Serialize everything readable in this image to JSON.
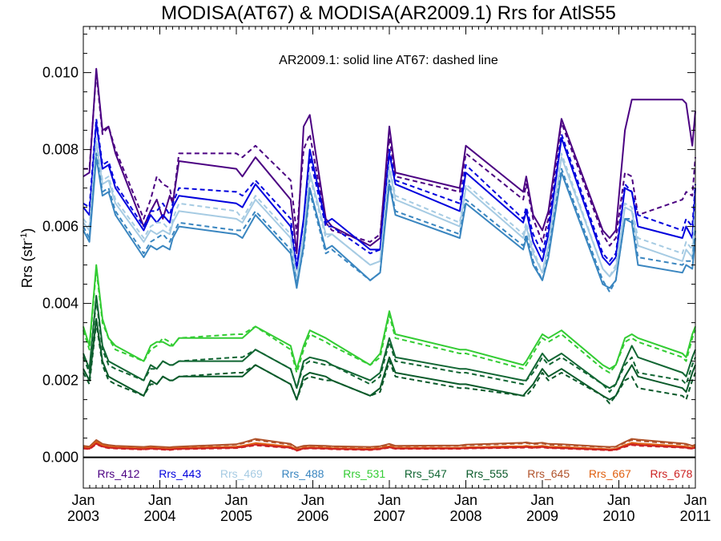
{
  "chart_data": {
    "type": "line",
    "title": "MODISA(AT67) & MODISA(AR2009.1)  Rrs for AtlS55",
    "subtitle": "AR2009.1: solid line   AT67: dashed line",
    "ylabel": "Rrs (str",
    "ylabel_sup": "-1",
    "ylabel_end": ")",
    "xlim": [
      2003.0,
      2011.0
    ],
    "ylim": [
      -0.0008,
      0.0112
    ],
    "y_ticks": [
      {
        "value": 0.0,
        "label": "0.000"
      },
      {
        "value": 0.002,
        "label": "0.002"
      },
      {
        "value": 0.004,
        "label": "0.004"
      },
      {
        "value": 0.006,
        "label": "0.006"
      },
      {
        "value": 0.008,
        "label": "0.008"
      },
      {
        "value": 0.01,
        "label": "0.010"
      }
    ],
    "x_ticks": [
      {
        "value": 2003,
        "month": "Jan",
        "year": "2003"
      },
      {
        "value": 2004,
        "month": "Jan",
        "year": "2004"
      },
      {
        "value": 2005,
        "month": "Jan",
        "year": "2005"
      },
      {
        "value": 2006,
        "month": "Jan",
        "year": "2006"
      },
      {
        "value": 2007,
        "month": "Jan",
        "year": "2007"
      },
      {
        "value": 2008,
        "month": "Jan",
        "year": "2008"
      },
      {
        "value": 2009,
        "month": "Jan",
        "year": "2009"
      },
      {
        "value": 2010,
        "month": "Jan",
        "year": "2010"
      },
      {
        "value": 2011,
        "month": "Jan",
        "year": "2011"
      }
    ],
    "x": [
      2003.0,
      2003.08,
      2003.17,
      2003.25,
      2003.33,
      2003.42,
      2003.79,
      2003.88,
      2003.96,
      2004.04,
      2004.13,
      2004.17,
      2004.25,
      2005.0,
      2005.08,
      2005.25,
      2005.71,
      2005.79,
      2005.88,
      2005.96,
      2006.17,
      2006.25,
      2006.75,
      2006.88,
      2007.0,
      2007.08,
      2007.92,
      2008.0,
      2008.75,
      2008.79,
      2008.88,
      2009.0,
      2009.08,
      2009.25,
      2009.79,
      2009.88,
      2009.96,
      2010.08,
      2010.17,
      2010.25,
      2010.83,
      2010.88,
      2010.96,
      2011.0
    ],
    "zero_line": 0.0,
    "series": [
      {
        "name": "Rrs_412",
        "color": "#4b0082",
        "solid": [
          0.0073,
          0.0074,
          0.0101,
          0.0085,
          0.0086,
          0.0079,
          0.006,
          0.0064,
          0.0067,
          0.0062,
          0.0068,
          0.0066,
          0.0077,
          0.0075,
          0.0073,
          0.0078,
          0.0067,
          0.0053,
          0.0086,
          0.0089,
          0.0062,
          0.006,
          0.0055,
          0.0057,
          0.0086,
          0.0074,
          0.007,
          0.0081,
          0.0069,
          0.0073,
          0.0063,
          0.0059,
          0.0064,
          0.0088,
          0.0059,
          0.0057,
          0.0059,
          0.0085,
          0.0093,
          0.0093,
          0.0093,
          0.0092,
          0.0081,
          0.009
        ],
        "dashed": [
          0.0075,
          0.0075,
          0.01,
          0.0084,
          0.0086,
          0.008,
          0.0062,
          0.0067,
          0.0073,
          0.0071,
          0.007,
          0.0066,
          0.0079,
          0.0079,
          0.0078,
          0.0081,
          0.0072,
          0.0058,
          0.008,
          0.0084,
          0.0061,
          0.0059,
          0.0056,
          0.0058,
          0.0083,
          0.0073,
          0.0069,
          0.0079,
          0.0067,
          0.0071,
          0.0062,
          0.0056,
          0.0062,
          0.0087,
          0.0058,
          0.0055,
          0.0057,
          0.0074,
          0.0073,
          0.0063,
          0.0067,
          0.0069,
          0.0068,
          0.0078
        ]
      },
      {
        "name": "Rrs_443",
        "color": "#0000dd",
        "solid": [
          0.0065,
          0.0063,
          0.0087,
          0.0075,
          0.0076,
          0.007,
          0.0059,
          0.0063,
          0.0061,
          0.0063,
          0.0061,
          0.0065,
          0.0068,
          0.0066,
          0.0065,
          0.0071,
          0.006,
          0.0049,
          0.0062,
          0.008,
          0.0061,
          0.0062,
          0.0054,
          0.0054,
          0.0079,
          0.0071,
          0.0064,
          0.0074,
          0.0061,
          0.0064,
          0.0056,
          0.0051,
          0.0058,
          0.0083,
          0.0052,
          0.005,
          0.0052,
          0.007,
          0.0069,
          0.006,
          0.0057,
          0.006,
          0.0057,
          0.007
        ],
        "dashed": [
          0.0066,
          0.0065,
          0.0088,
          0.0076,
          0.0077,
          0.0071,
          0.006,
          0.0064,
          0.0064,
          0.0066,
          0.0063,
          0.0066,
          0.007,
          0.0069,
          0.0068,
          0.0072,
          0.0062,
          0.005,
          0.0061,
          0.0078,
          0.006,
          0.006,
          0.0053,
          0.0054,
          0.008,
          0.0072,
          0.0066,
          0.0076,
          0.0062,
          0.0065,
          0.0058,
          0.0053,
          0.006,
          0.0084,
          0.0053,
          0.0051,
          0.0053,
          0.0071,
          0.0069,
          0.0063,
          0.0059,
          0.0062,
          0.006,
          0.0071
        ]
      },
      {
        "name": "Rrs_469",
        "color": "#a6cbe3",
        "solid": [
          0.0061,
          0.0059,
          0.0082,
          0.0071,
          0.0072,
          0.0066,
          0.0056,
          0.0059,
          0.0058,
          0.0059,
          0.0058,
          0.0061,
          0.0064,
          0.0062,
          0.0061,
          0.0067,
          0.0057,
          0.0046,
          0.0058,
          0.0074,
          0.0058,
          0.0058,
          0.005,
          0.0051,
          0.0075,
          0.0067,
          0.006,
          0.007,
          0.0057,
          0.006,
          0.0053,
          0.0048,
          0.0055,
          0.0078,
          0.0049,
          0.0047,
          0.0049,
          0.0065,
          0.0064,
          0.0055,
          0.0051,
          0.0054,
          0.0052,
          0.0064
        ],
        "dashed": [
          0.0062,
          0.006,
          0.0083,
          0.0072,
          0.0073,
          0.0067,
          0.0057,
          0.006,
          0.0061,
          0.0061,
          0.0059,
          0.0062,
          0.0066,
          0.0064,
          0.0062,
          0.0068,
          0.0058,
          0.0047,
          0.0058,
          0.0073,
          0.0057,
          0.0058,
          0.005,
          0.0051,
          0.0076,
          0.0068,
          0.0061,
          0.0071,
          0.0058,
          0.0061,
          0.0054,
          0.0048,
          0.0056,
          0.0079,
          0.0049,
          0.0047,
          0.005,
          0.0066,
          0.0065,
          0.0057,
          0.0053,
          0.0056,
          0.0054,
          0.0066
        ]
      },
      {
        "name": "Rrs_488",
        "color": "#3a86c0",
        "solid": [
          0.0059,
          0.0056,
          0.0078,
          0.0068,
          0.0069,
          0.0063,
          0.0052,
          0.0055,
          0.0054,
          0.0055,
          0.0054,
          0.0057,
          0.006,
          0.0058,
          0.0057,
          0.0063,
          0.0053,
          0.0044,
          0.0055,
          0.007,
          0.0054,
          0.0055,
          0.0046,
          0.0048,
          0.0071,
          0.0063,
          0.0057,
          0.0066,
          0.0054,
          0.0057,
          0.005,
          0.0046,
          0.0052,
          0.0074,
          0.0045,
          0.0044,
          0.0046,
          0.0062,
          0.0061,
          0.005,
          0.0048,
          0.005,
          0.0049,
          0.0057
        ],
        "dashed": [
          0.006,
          0.0057,
          0.0079,
          0.0069,
          0.007,
          0.0064,
          0.0053,
          0.0056,
          0.0057,
          0.0058,
          0.0056,
          0.0058,
          0.0061,
          0.0059,
          0.0059,
          0.0064,
          0.0054,
          0.0045,
          0.0054,
          0.0069,
          0.0053,
          0.0054,
          0.0046,
          0.0048,
          0.0072,
          0.0064,
          0.0058,
          0.0067,
          0.0055,
          0.0058,
          0.0051,
          0.0046,
          0.0053,
          0.0075,
          0.0046,
          0.0043,
          0.0046,
          0.0062,
          0.0062,
          0.0052,
          0.005,
          0.0051,
          0.0051,
          0.0059
        ]
      },
      {
        "name": "Rrs_531",
        "color": "#33cc33",
        "solid": [
          0.0034,
          0.0029,
          0.005,
          0.0036,
          0.0031,
          0.0029,
          0.0025,
          0.0029,
          0.003,
          0.003,
          0.0029,
          0.0029,
          0.0031,
          0.0031,
          0.0031,
          0.0034,
          0.0029,
          0.0023,
          0.0029,
          0.0033,
          0.0031,
          0.003,
          0.0024,
          0.0027,
          0.0038,
          0.0032,
          0.0028,
          0.0028,
          0.0024,
          0.0025,
          0.0028,
          0.0032,
          0.0031,
          0.0033,
          0.0024,
          0.0023,
          0.0024,
          0.0031,
          0.0032,
          0.0031,
          0.0027,
          0.0026,
          0.0032,
          0.0034
        ],
        "dashed": [
          0.0033,
          0.0028,
          0.0049,
          0.0035,
          0.0031,
          0.0028,
          0.0025,
          0.0028,
          0.0029,
          0.0031,
          0.003,
          0.0029,
          0.0031,
          0.0032,
          0.0032,
          0.0034,
          0.0028,
          0.0022,
          0.0028,
          0.0032,
          0.003,
          0.0029,
          0.0024,
          0.0026,
          0.0037,
          0.0031,
          0.0027,
          0.0027,
          0.0023,
          0.0024,
          0.0027,
          0.0031,
          0.003,
          0.0032,
          0.0023,
          0.0022,
          0.0024,
          0.003,
          0.0031,
          0.003,
          0.0026,
          0.0025,
          0.0031,
          0.0033
        ]
      },
      {
        "name": "Rrs_547",
        "color": "#116633",
        "solid": [
          0.0027,
          0.0023,
          0.0042,
          0.0029,
          0.0025,
          0.0024,
          0.002,
          0.0024,
          0.0023,
          0.0025,
          0.0024,
          0.0024,
          0.0025,
          0.0025,
          0.0025,
          0.0028,
          0.0023,
          0.0018,
          0.0025,
          0.0026,
          0.0025,
          0.0024,
          0.002,
          0.0022,
          0.0031,
          0.0026,
          0.0023,
          0.0023,
          0.002,
          0.002,
          0.0023,
          0.0027,
          0.0025,
          0.0027,
          0.0019,
          0.0018,
          0.0019,
          0.0025,
          0.0029,
          0.0026,
          0.0022,
          0.0021,
          0.0026,
          0.0028
        ],
        "dashed": [
          0.0026,
          0.0022,
          0.0041,
          0.0028,
          0.0024,
          0.0023,
          0.002,
          0.0023,
          0.0023,
          0.0025,
          0.0024,
          0.0024,
          0.0025,
          0.0026,
          0.0026,
          0.0028,
          0.0023,
          0.0018,
          0.0024,
          0.0025,
          0.0024,
          0.0024,
          0.0019,
          0.0021,
          0.003,
          0.0025,
          0.0022,
          0.0022,
          0.0019,
          0.002,
          0.0022,
          0.0026,
          0.0024,
          0.0026,
          0.0019,
          0.0017,
          0.0019,
          0.0024,
          0.0026,
          0.0022,
          0.002,
          0.0019,
          0.0024,
          0.0026
        ]
      },
      {
        "name": "Rrs_555",
        "color": "#0a5a2a",
        "solid": [
          0.0023,
          0.002,
          0.0036,
          0.0025,
          0.0021,
          0.002,
          0.0016,
          0.002,
          0.0019,
          0.0021,
          0.002,
          0.002,
          0.0021,
          0.0021,
          0.0021,
          0.0024,
          0.0019,
          0.0015,
          0.0021,
          0.0022,
          0.0021,
          0.002,
          0.0016,
          0.0018,
          0.0026,
          0.0022,
          0.0019,
          0.0019,
          0.0016,
          0.0017,
          0.0019,
          0.0023,
          0.0021,
          0.0023,
          0.0016,
          0.0015,
          0.0016,
          0.0021,
          0.0024,
          0.0021,
          0.0018,
          0.0017,
          0.0022,
          0.0024
        ],
        "dashed": [
          0.0022,
          0.0019,
          0.0035,
          0.0024,
          0.002,
          0.0019,
          0.0016,
          0.0019,
          0.0019,
          0.0021,
          0.002,
          0.002,
          0.0021,
          0.0022,
          0.0022,
          0.0024,
          0.0019,
          0.0015,
          0.002,
          0.0021,
          0.002,
          0.002,
          0.0016,
          0.0017,
          0.0025,
          0.0021,
          0.0018,
          0.0018,
          0.0016,
          0.0016,
          0.0018,
          0.0022,
          0.002,
          0.0022,
          0.0016,
          0.0014,
          0.0016,
          0.002,
          0.0021,
          0.0018,
          0.0016,
          0.0015,
          0.002,
          0.0022
        ]
      },
      {
        "name": "Rrs_645",
        "color": "#b0522a",
        "solid": [
          0.0003,
          0.00028,
          0.00045,
          0.00035,
          0.00032,
          0.0003,
          0.00027,
          0.00029,
          0.00028,
          0.00027,
          0.00026,
          0.00027,
          0.00028,
          0.00034,
          0.00038,
          0.00048,
          0.00035,
          0.00025,
          0.0003,
          0.00031,
          0.0003,
          0.00029,
          0.00027,
          0.00029,
          0.00035,
          0.0003,
          0.00031,
          0.00033,
          0.00038,
          0.00039,
          0.00036,
          0.00038,
          0.00035,
          0.00034,
          0.00028,
          0.00027,
          0.00028,
          0.0004,
          0.00048,
          0.00046,
          0.00036,
          0.00035,
          0.0003,
          0.00033
        ],
        "dashed": [
          0.00029,
          0.00027,
          0.00043,
          0.00034,
          0.00031,
          0.00029,
          0.00026,
          0.00028,
          0.00027,
          0.00026,
          0.00025,
          0.00026,
          0.00027,
          0.00033,
          0.00036,
          0.00045,
          0.00033,
          0.00024,
          0.00029,
          0.0003,
          0.00029,
          0.00028,
          0.00026,
          0.00028,
          0.00033,
          0.00029,
          0.0003,
          0.00031,
          0.00036,
          0.00037,
          0.00034,
          0.00036,
          0.00033,
          0.00032,
          0.00027,
          0.00026,
          0.00027,
          0.00038,
          0.00045,
          0.00043,
          0.00034,
          0.00033,
          0.00029,
          0.00031
        ]
      },
      {
        "name": "Rrs_667",
        "color": "#e06010",
        "solid": [
          0.00026,
          0.00024,
          0.0004,
          0.00031,
          0.00028,
          0.00026,
          0.00023,
          0.00025,
          0.00024,
          0.00023,
          0.00022,
          0.00023,
          0.00024,
          0.00028,
          0.0003,
          0.00037,
          0.00028,
          0.0002,
          0.00025,
          0.00026,
          0.00025,
          0.00024,
          0.00022,
          0.00024,
          0.00029,
          0.00025,
          0.00025,
          0.00026,
          0.00029,
          0.0003,
          0.00028,
          0.0003,
          0.00028,
          0.00027,
          0.00022,
          0.00021,
          0.00022,
          0.00032,
          0.00038,
          0.00036,
          0.00029,
          0.00028,
          0.00025,
          0.00027
        ],
        "dashed": [
          0.00025,
          0.00023,
          0.00038,
          0.0003,
          0.00027,
          0.00025,
          0.00022,
          0.00024,
          0.00023,
          0.00022,
          0.00021,
          0.00022,
          0.00023,
          0.00027,
          0.00029,
          0.00035,
          0.00027,
          0.00019,
          0.00024,
          0.00025,
          0.00024,
          0.00023,
          0.00021,
          0.00023,
          0.00028,
          0.00024,
          0.00024,
          0.00025,
          0.00028,
          0.00029,
          0.00027,
          0.00029,
          0.00027,
          0.00026,
          0.00021,
          0.0002,
          0.00021,
          0.0003,
          0.00036,
          0.00034,
          0.00027,
          0.00026,
          0.00024,
          0.00026
        ]
      },
      {
        "name": "Rrs_678",
        "color": "#cc2222",
        "solid": [
          0.00024,
          0.00022,
          0.00036,
          0.00028,
          0.00025,
          0.00024,
          0.00021,
          0.00023,
          0.00022,
          0.00021,
          0.0002,
          0.00021,
          0.00022,
          0.00025,
          0.00027,
          0.00033,
          0.00025,
          0.00018,
          0.00023,
          0.00024,
          0.00023,
          0.00022,
          0.0002,
          0.00022,
          0.00026,
          0.00023,
          0.00023,
          0.00024,
          0.00026,
          0.00027,
          0.00025,
          0.00027,
          0.00025,
          0.00024,
          0.0002,
          0.00019,
          0.0002,
          0.00029,
          0.00034,
          0.00032,
          0.00026,
          0.00025,
          0.00023,
          0.00025
        ],
        "dashed": [
          0.00023,
          0.00021,
          0.00034,
          0.00027,
          0.00024,
          0.00023,
          0.0002,
          0.00022,
          0.00021,
          0.0002,
          0.00019,
          0.0002,
          0.00021,
          0.00024,
          0.00026,
          0.00031,
          0.00024,
          0.00017,
          0.00022,
          0.00023,
          0.00022,
          0.00021,
          0.00019,
          0.00021,
          0.00025,
          0.00022,
          0.00022,
          0.00023,
          0.00025,
          0.00026,
          0.00024,
          0.00026,
          0.00024,
          0.00023,
          0.00019,
          0.00018,
          0.00019,
          0.00027,
          0.00032,
          0.0003,
          0.00025,
          0.00024,
          0.00022,
          0.00024
        ]
      }
    ]
  }
}
